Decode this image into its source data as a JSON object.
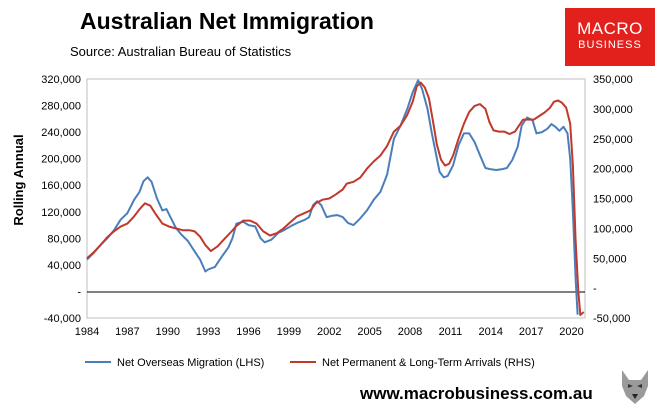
{
  "header": {
    "title": "Australian Net Immigration",
    "source": "Source: Australian Bureau of Statistics"
  },
  "logo": {
    "line1": "MACRO",
    "line2": "BUSINESS",
    "color": "#e2211c"
  },
  "footer": {
    "url": "www.macrobusiness.com.au"
  },
  "chart_data": {
    "type": "line",
    "ylabel": "Rolling Annual",
    "x_ticks": [
      "1984",
      "1987",
      "1990",
      "1993",
      "1996",
      "1999",
      "2002",
      "2005",
      "2008",
      "2011",
      "2014",
      "2017",
      "2020"
    ],
    "y_left_ticks": [
      "-40,000",
      "-",
      "40,000",
      "80,000",
      "120,000",
      "160,000",
      "200,000",
      "240,000",
      "280,000",
      "320,000"
    ],
    "y_right_ticks": [
      "-50,000",
      "-",
      "50,000",
      "100,000",
      "150,000",
      "200,000",
      "250,000",
      "300,000",
      "350,000"
    ],
    "ylim_left": [
      -40000,
      320000
    ],
    "ylim_right": [
      -50000,
      350000
    ],
    "xlim": [
      1984,
      2021
    ],
    "grid": false,
    "legend_position": "bottom",
    "series": [
      {
        "name": "Net Overseas Migration (LHS)",
        "axis": "left",
        "color": "#4a7ebb",
        "points": [
          [
            1984.0,
            48000
          ],
          [
            1984.5,
            58000
          ],
          [
            1985.0,
            70000
          ],
          [
            1985.5,
            80000
          ],
          [
            1986.0,
            92000
          ],
          [
            1986.5,
            108000
          ],
          [
            1987.0,
            118000
          ],
          [
            1987.5,
            138000
          ],
          [
            1987.9,
            150000
          ],
          [
            1988.2,
            166000
          ],
          [
            1988.5,
            172000
          ],
          [
            1988.8,
            165000
          ],
          [
            1989.2,
            140000
          ],
          [
            1989.6,
            122000
          ],
          [
            1989.9,
            124000
          ],
          [
            1990.2,
            112000
          ],
          [
            1990.6,
            96000
          ],
          [
            1991.0,
            86000
          ],
          [
            1991.5,
            76000
          ],
          [
            1992.0,
            60000
          ],
          [
            1992.4,
            48000
          ],
          [
            1992.8,
            30000
          ],
          [
            1993.0,
            33000
          ],
          [
            1993.5,
            37000
          ],
          [
            1994.0,
            52000
          ],
          [
            1994.5,
            66000
          ],
          [
            1994.8,
            80000
          ],
          [
            1995.1,
            102000
          ],
          [
            1995.6,
            105000
          ],
          [
            1996.0,
            100000
          ],
          [
            1996.5,
            98000
          ],
          [
            1996.9,
            80000
          ],
          [
            1997.2,
            74000
          ],
          [
            1997.7,
            78000
          ],
          [
            1998.2,
            88000
          ],
          [
            1998.7,
            93000
          ],
          [
            1999.2,
            99000
          ],
          [
            1999.7,
            104000
          ],
          [
            2000.2,
            108000
          ],
          [
            2000.5,
            112000
          ],
          [
            2000.8,
            130000
          ],
          [
            2001.1,
            136000
          ],
          [
            2001.4,
            130000
          ],
          [
            2001.8,
            112000
          ],
          [
            2002.2,
            114000
          ],
          [
            2002.6,
            115000
          ],
          [
            2003.0,
            112000
          ],
          [
            2003.4,
            103000
          ],
          [
            2003.8,
            100000
          ],
          [
            2004.3,
            110000
          ],
          [
            2004.8,
            122000
          ],
          [
            2005.3,
            138000
          ],
          [
            2005.8,
            150000
          ],
          [
            2006.3,
            176000
          ],
          [
            2006.8,
            230000
          ],
          [
            2007.3,
            250000
          ],
          [
            2007.8,
            275000
          ],
          [
            2008.2,
            300000
          ],
          [
            2008.6,
            318000
          ],
          [
            2008.9,
            305000
          ],
          [
            2009.3,
            275000
          ],
          [
            2009.6,
            240000
          ],
          [
            2009.9,
            210000
          ],
          [
            2010.2,
            180000
          ],
          [
            2010.5,
            172000
          ],
          [
            2010.8,
            174000
          ],
          [
            2011.2,
            190000
          ],
          [
            2011.6,
            220000
          ],
          [
            2012.0,
            238000
          ],
          [
            2012.4,
            238000
          ],
          [
            2012.8,
            225000
          ],
          [
            2013.2,
            205000
          ],
          [
            2013.6,
            186000
          ],
          [
            2014.0,
            184000
          ],
          [
            2014.4,
            183000
          ],
          [
            2014.8,
            184000
          ],
          [
            2015.2,
            186000
          ],
          [
            2015.6,
            198000
          ],
          [
            2016.0,
            218000
          ],
          [
            2016.3,
            250000
          ],
          [
            2016.7,
            262000
          ],
          [
            2017.1,
            258000
          ],
          [
            2017.4,
            238000
          ],
          [
            2017.8,
            240000
          ],
          [
            2018.2,
            245000
          ],
          [
            2018.5,
            252000
          ],
          [
            2018.8,
            248000
          ],
          [
            2019.1,
            242000
          ],
          [
            2019.4,
            248000
          ],
          [
            2019.7,
            238000
          ],
          [
            2019.9,
            200000
          ],
          [
            2020.1,
            120000
          ],
          [
            2020.3,
            20000
          ],
          [
            2020.45,
            -35000
          ]
        ]
      },
      {
        "name": "Net Permanent & Long-Term Arrivals (RHS)",
        "axis": "right",
        "color": "#c0392b",
        "points": [
          [
            1984.0,
            50000
          ],
          [
            1984.5,
            60000
          ],
          [
            1985.0,
            72000
          ],
          [
            1985.5,
            85000
          ],
          [
            1986.0,
            95000
          ],
          [
            1986.5,
            103000
          ],
          [
            1987.0,
            108000
          ],
          [
            1987.5,
            120000
          ],
          [
            1987.9,
            132000
          ],
          [
            1988.3,
            142000
          ],
          [
            1988.7,
            138000
          ],
          [
            1989.1,
            124000
          ],
          [
            1989.6,
            108000
          ],
          [
            1990.1,
            103000
          ],
          [
            1990.6,
            100000
          ],
          [
            1991.1,
            97000
          ],
          [
            1991.6,
            97000
          ],
          [
            1992.0,
            95000
          ],
          [
            1992.4,
            86000
          ],
          [
            1992.8,
            72000
          ],
          [
            1993.2,
            62000
          ],
          [
            1993.7,
            70000
          ],
          [
            1994.2,
            82000
          ],
          [
            1994.7,
            94000
          ],
          [
            1995.1,
            104000
          ],
          [
            1995.6,
            113000
          ],
          [
            1996.1,
            113000
          ],
          [
            1996.6,
            108000
          ],
          [
            1997.1,
            95000
          ],
          [
            1997.6,
            88000
          ],
          [
            1998.1,
            92000
          ],
          [
            1998.6,
            100000
          ],
          [
            1999.1,
            110000
          ],
          [
            1999.6,
            120000
          ],
          [
            2000.1,
            125000
          ],
          [
            2000.6,
            130000
          ],
          [
            2001.0,
            142000
          ],
          [
            2001.5,
            148000
          ],
          [
            2002.0,
            150000
          ],
          [
            2002.5,
            157000
          ],
          [
            2003.0,
            165000
          ],
          [
            2003.3,
            175000
          ],
          [
            2003.8,
            178000
          ],
          [
            2004.3,
            185000
          ],
          [
            2004.8,
            200000
          ],
          [
            2005.3,
            212000
          ],
          [
            2005.8,
            222000
          ],
          [
            2006.3,
            238000
          ],
          [
            2006.8,
            262000
          ],
          [
            2007.3,
            272000
          ],
          [
            2007.8,
            290000
          ],
          [
            2008.2,
            312000
          ],
          [
            2008.5,
            338000
          ],
          [
            2008.8,
            344000
          ],
          [
            2009.1,
            336000
          ],
          [
            2009.4,
            318000
          ],
          [
            2009.7,
            280000
          ],
          [
            2010.0,
            240000
          ],
          [
            2010.3,
            215000
          ],
          [
            2010.6,
            205000
          ],
          [
            2010.9,
            208000
          ],
          [
            2011.2,
            222000
          ],
          [
            2011.6,
            250000
          ],
          [
            2012.0,
            275000
          ],
          [
            2012.4,
            295000
          ],
          [
            2012.8,
            305000
          ],
          [
            2013.2,
            308000
          ],
          [
            2013.6,
            300000
          ],
          [
            2013.9,
            278000
          ],
          [
            2014.2,
            264000
          ],
          [
            2014.6,
            262000
          ],
          [
            2015.0,
            262000
          ],
          [
            2015.4,
            258000
          ],
          [
            2015.8,
            262000
          ],
          [
            2016.1,
            272000
          ],
          [
            2016.4,
            282000
          ],
          [
            2016.8,
            282000
          ],
          [
            2017.2,
            282000
          ],
          [
            2017.6,
            288000
          ],
          [
            2018.0,
            294000
          ],
          [
            2018.4,
            302000
          ],
          [
            2018.7,
            312000
          ],
          [
            2019.0,
            314000
          ],
          [
            2019.3,
            310000
          ],
          [
            2019.6,
            302000
          ],
          [
            2019.9,
            275000
          ],
          [
            2020.1,
            205000
          ],
          [
            2020.3,
            80000
          ],
          [
            2020.5,
            -5000
          ],
          [
            2020.65,
            -45000
          ],
          [
            2020.9,
            -40000
          ]
        ]
      }
    ]
  }
}
